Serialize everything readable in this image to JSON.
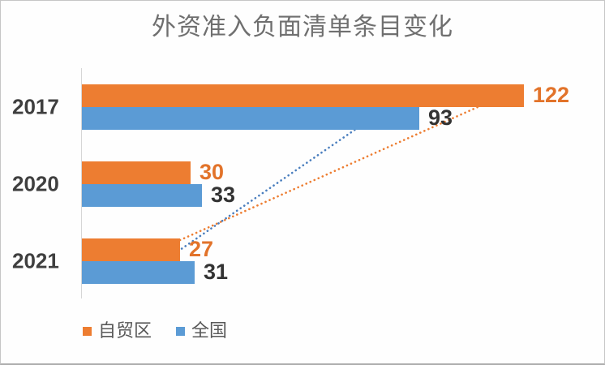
{
  "title": "外资准入负面清单条目变化",
  "chart_data": {
    "type": "bar",
    "orientation": "horizontal",
    "title": "外资准入负面清单条目变化",
    "categories": [
      "2017",
      "2020",
      "2021"
    ],
    "series": [
      {
        "name": "自贸区",
        "color": "#ED7D31",
        "label_color": "#E2732A",
        "values": [
          122,
          30,
          27
        ]
      },
      {
        "name": "全国",
        "color": "#5B9BD5",
        "label_color": "#333333",
        "values": [
          93,
          33,
          31
        ]
      }
    ],
    "xlabel": "",
    "ylabel": "",
    "xlim": [
      0,
      130
    ],
    "grid": false,
    "value_labels": true,
    "legend_position": "bottom-left",
    "annotations": [
      {
        "kind": "dotted-trend-line",
        "series": "自贸区",
        "from_category": "2021",
        "to_category": "2017",
        "color": "#ED7D31"
      },
      {
        "kind": "dotted-trend-line",
        "series": "全国",
        "from_category": "2021",
        "to_category": "2017",
        "color": "#4A7EBE"
      }
    ]
  },
  "legend": {
    "items": [
      {
        "label": "自贸区",
        "color": "#ED7D31"
      },
      {
        "label": "全国",
        "color": "#5B9BD5"
      }
    ]
  },
  "colors": {
    "title_text": "#6f6f6f",
    "category_text": "#3f3f3f",
    "axis_line": "#d6d6d6",
    "page_border": "#c6c6c6"
  }
}
